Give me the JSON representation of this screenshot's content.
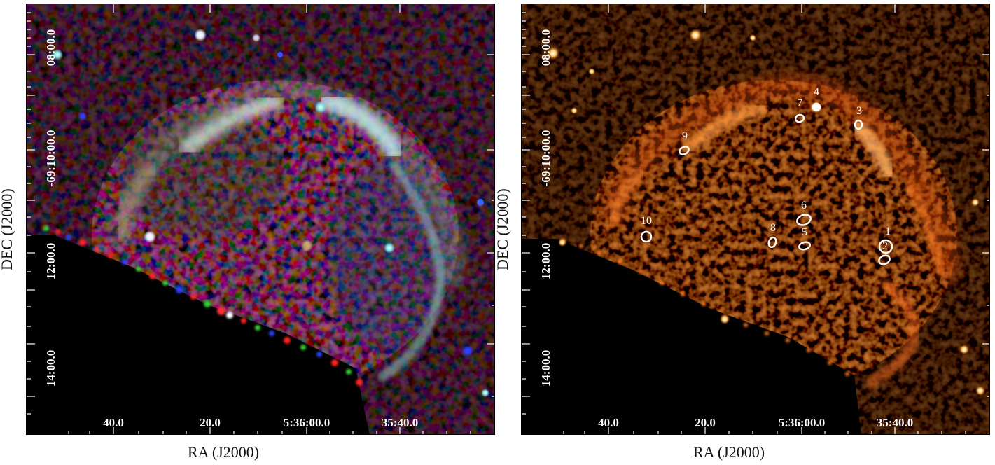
{
  "left_panel": {
    "axis": {
      "xlabel": "RA (J2000)",
      "ylabel": "DEC (J2000)",
      "ra_ticks": [
        "40.0",
        "20.0",
        "5:36:00.0",
        "35:40.0"
      ],
      "dec_ticks": [
        "08:00.0",
        "-69:10:00.0",
        "12:00.0",
        "14:00.0"
      ]
    }
  },
  "right_panel": {
    "axis": {
      "xlabel": "RA (J2000)",
      "ylabel": "DEC (J2000)",
      "ra_ticks": [
        "40.0",
        "20.0",
        "5:36:00.0",
        "35:40.0"
      ],
      "dec_ticks": [
        "08:00.0",
        "-69:10:00.0",
        "12:00.0",
        "14:00.0"
      ]
    },
    "sources": [
      "1",
      "2",
      "3",
      "4",
      "5",
      "6",
      "7",
      "8",
      "9",
      "10"
    ]
  }
}
